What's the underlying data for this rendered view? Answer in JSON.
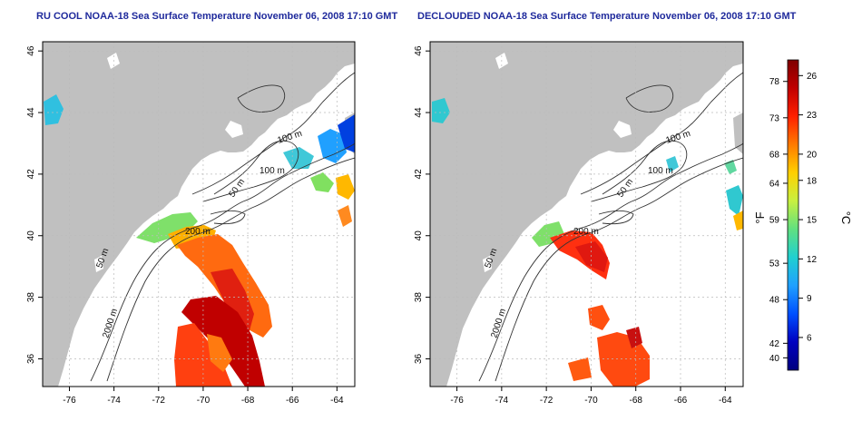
{
  "titles": {
    "left": "RU COOL NOAA-18 Sea Surface Temperature November 06, 2008 17:10 GMT",
    "right": "DECLOUDED NOAA-18 Sea Surface Temperature November 06, 2008 17:10 GMT"
  },
  "map": {
    "lon_ticks": [
      "-76",
      "-74",
      "-72",
      "-70",
      "-68",
      "-66",
      "-64"
    ],
    "lon_values": [
      -76,
      -74,
      -72,
      -70,
      -68,
      -66,
      -64
    ],
    "lat_ticks": [
      "46",
      "44",
      "42",
      "40",
      "38",
      "36"
    ],
    "lat_values": [
      46,
      44,
      42,
      40,
      38,
      36
    ],
    "lon_range": [
      -77.2,
      -63.2
    ],
    "lat_range": [
      35.1,
      46.3
    ],
    "contour_labels": [
      "100 m",
      "100 m",
      "50 m",
      "200 m",
      "50 m",
      "2000 m"
    ],
    "colors": {
      "land": "#c0c0c0",
      "ocean": "#ffffff",
      "contour": "#333333",
      "grid": "#bbbbbb"
    }
  },
  "colorbar": {
    "fahrenheit_ticks": [
      "78",
      "73",
      "68",
      "64",
      "59",
      "53",
      "48",
      "42",
      "40"
    ],
    "fahrenheit_values": [
      78,
      73,
      68,
      64,
      59,
      53,
      48,
      42,
      40
    ],
    "celsius_ticks": [
      "26",
      "23",
      "20",
      "18",
      "15",
      "12",
      "9",
      "6"
    ],
    "celsius_values": [
      26,
      23,
      20,
      18,
      15,
      12,
      9,
      6
    ],
    "fahrenheit_label": "°F",
    "celsius_label": "°C",
    "celsius_range": [
      3.5,
      27.2
    ],
    "gradient": [
      "#7f0000",
      "#c00000",
      "#ff2000",
      "#ff7a00",
      "#ffd000",
      "#c8f040",
      "#60e080",
      "#20d0d0",
      "#20a0ff",
      "#0050ff",
      "#0000c0",
      "#00007f"
    ]
  }
}
